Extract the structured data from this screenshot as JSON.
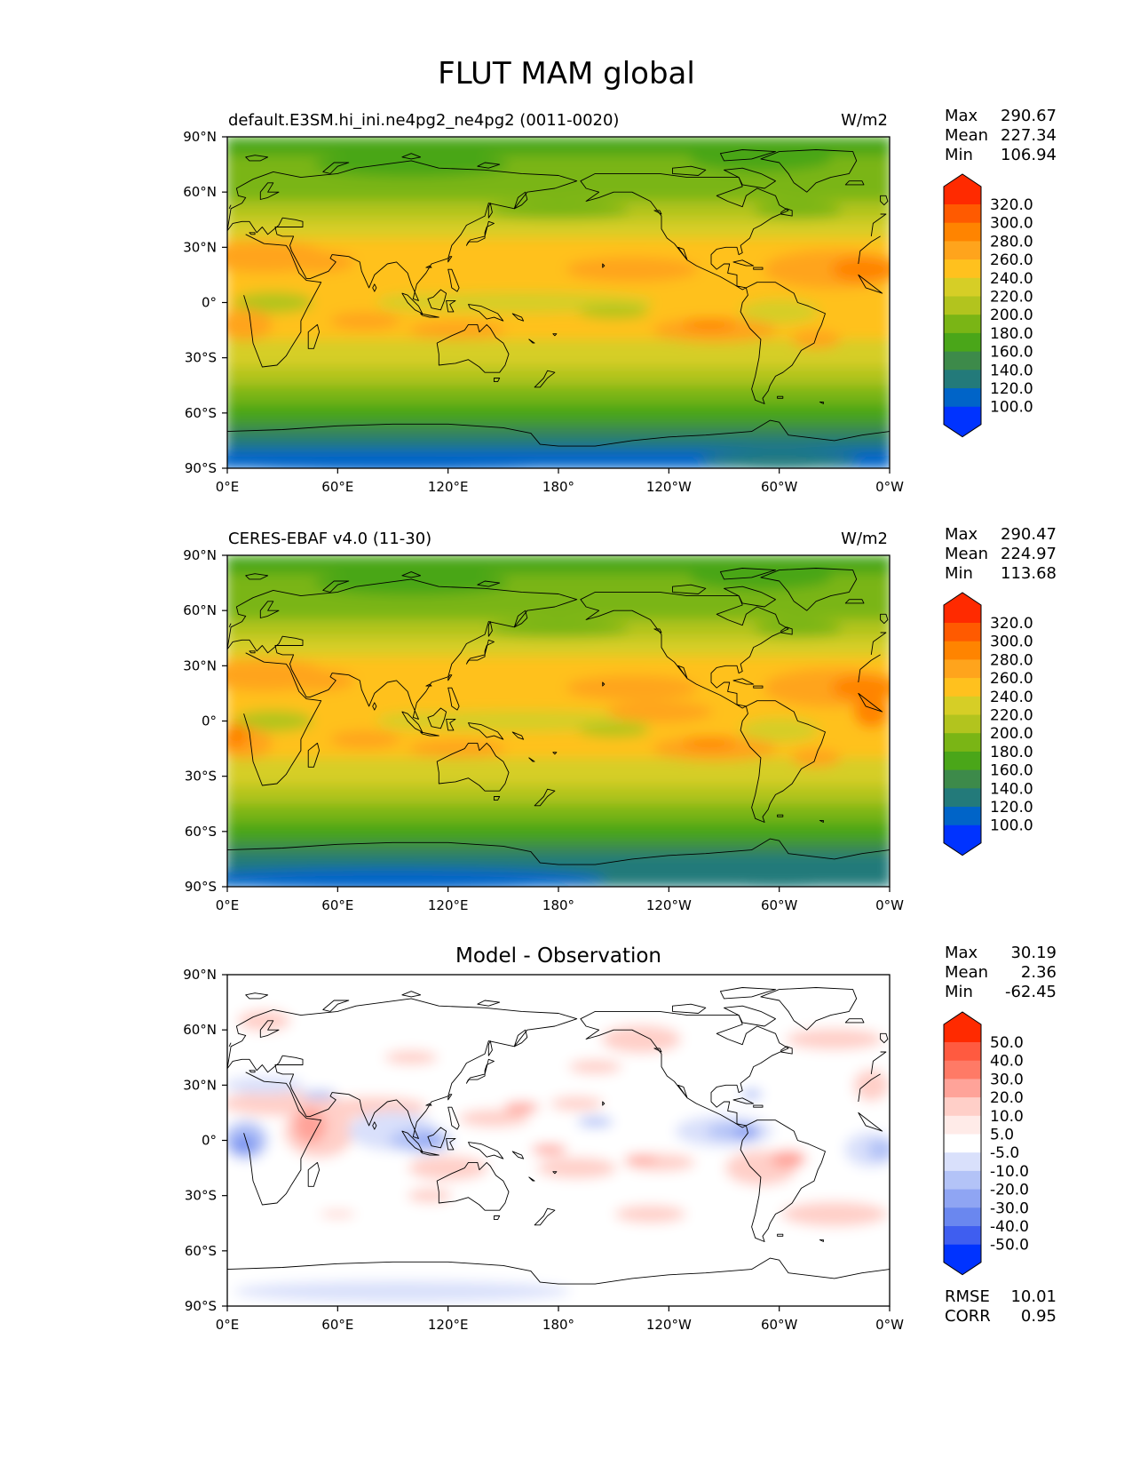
{
  "figure": {
    "title": "FLUT MAM global"
  },
  "axes": {
    "x_ticks": [
      "0°E",
      "60°E",
      "120°E",
      "180°",
      "120°W",
      "60°W",
      "0°W"
    ],
    "y_ticks": [
      "90°N",
      "60°N",
      "30°N",
      "0°",
      "30°S",
      "60°S",
      "90°S"
    ]
  },
  "chart_data": [
    {
      "type": "heatmap",
      "title": "default.E3SM.hi_ini.ne4pg2_ne4pg2 (0011-0020)",
      "units": "W/m2",
      "xlim": [
        0,
        360
      ],
      "ylim": [
        -90,
        90
      ],
      "stats": {
        "max_label": "Max",
        "max": "290.67",
        "mean_label": "Mean",
        "mean": "227.34",
        "min_label": "Min",
        "min": "106.94"
      },
      "colorbar": {
        "levels": [
          "320.0",
          "300.0",
          "280.0",
          "260.0",
          "240.0",
          "220.0",
          "200.0",
          "180.0",
          "160.0",
          "140.0",
          "120.0",
          "100.0"
        ],
        "colors": [
          "#ff2a00",
          "#ff5a00",
          "#ff8400",
          "#ffa41c",
          "#ffc11e",
          "#d6ce26",
          "#b2c41e",
          "#7ab515",
          "#4aa619",
          "#3d8a4a",
          "#237a7a",
          "#0064c8",
          "#0033ff"
        ]
      },
      "field": "model"
    },
    {
      "type": "heatmap",
      "title": "CERES-EBAF v4.0 (11-30)",
      "units": "W/m2",
      "xlim": [
        0,
        360
      ],
      "ylim": [
        -90,
        90
      ],
      "stats": {
        "max_label": "Max",
        "max": "290.47",
        "mean_label": "Mean",
        "mean": "224.97",
        "min_label": "Min",
        "min": "113.68"
      },
      "colorbar": {
        "levels": [
          "320.0",
          "300.0",
          "280.0",
          "260.0",
          "240.0",
          "220.0",
          "200.0",
          "180.0",
          "160.0",
          "140.0",
          "120.0",
          "100.0"
        ],
        "colors": [
          "#ff2a00",
          "#ff5a00",
          "#ff8400",
          "#ffa41c",
          "#ffc11e",
          "#d6ce26",
          "#b2c41e",
          "#7ab515",
          "#4aa619",
          "#3d8a4a",
          "#237a7a",
          "#0064c8",
          "#0033ff"
        ]
      },
      "field": "obs"
    },
    {
      "type": "heatmap",
      "title": "Model - Observation",
      "units": "",
      "xlim": [
        0,
        360
      ],
      "ylim": [
        -90,
        90
      ],
      "stats": {
        "max_label": "Max",
        "max": "30.19",
        "mean_label": "Mean",
        "mean": "2.36",
        "min_label": "Min",
        "min": "-62.45"
      },
      "extra_stats": {
        "rmse_label": "RMSE",
        "rmse": "10.01",
        "corr_label": "CORR",
        "corr": "0.95"
      },
      "colorbar": {
        "levels": [
          "50.0",
          "40.0",
          "30.0",
          "20.0",
          "10.0",
          "5.0",
          "-5.0",
          "-10.0",
          "-20.0",
          "-30.0",
          "-40.0",
          "-50.0"
        ],
        "colors": [
          "#ff2a00",
          "#ff5a40",
          "#ff7a66",
          "#ffa399",
          "#ffcfc8",
          "#ffebe8",
          "#ffffff",
          "#d9e0fb",
          "#b3c3f7",
          "#8fa5f3",
          "#6a87ef",
          "#3f5ef0",
          "#0033ff"
        ]
      },
      "field": "diff"
    }
  ]
}
